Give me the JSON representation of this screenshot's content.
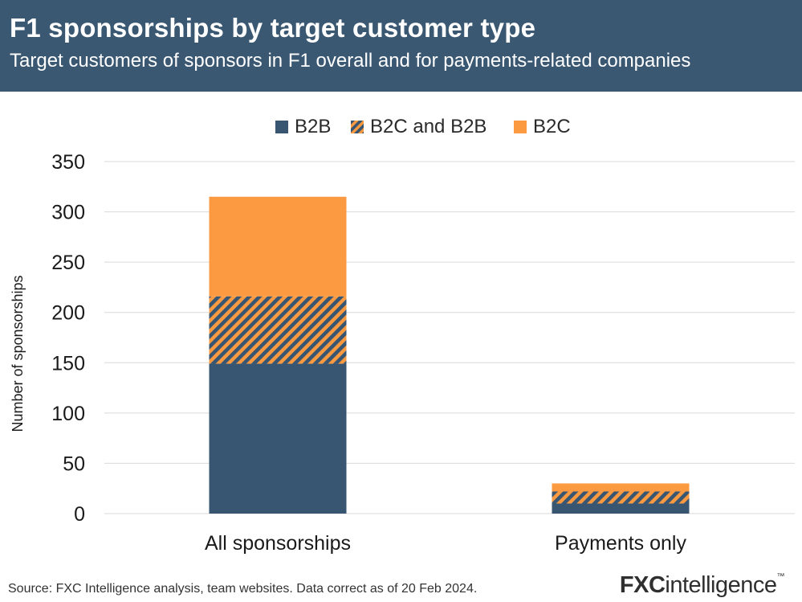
{
  "header": {
    "title": "F1 sponsorships by target customer type",
    "subtitle": "Target customers of sponsors in F1 overall and for payments-related companies"
  },
  "colors": {
    "header_bg": "#3b5873",
    "b2b": "#385672",
    "b2c": "#fb9a40",
    "grid": "#d9d9d9"
  },
  "chart_data": {
    "type": "bar",
    "stacked": true,
    "categories": [
      "All sponsorships",
      "Payments only"
    ],
    "series": [
      {
        "name": "B2B",
        "values": [
          149,
          10
        ],
        "color": "#385672",
        "pattern": "solid"
      },
      {
        "name": "B2C and B2B",
        "values": [
          67,
          12
        ],
        "color": "#385672",
        "pattern": "hatched"
      },
      {
        "name": "B2C",
        "values": [
          99,
          8
        ],
        "color": "#fb9a40",
        "pattern": "solid"
      }
    ],
    "ylabel": "Number of sponsorships",
    "yticks": [
      0,
      50,
      100,
      150,
      200,
      250,
      300,
      350
    ],
    "ylim": [
      0,
      350
    ],
    "grid": true,
    "legend_position": "top-center"
  },
  "footer": {
    "source": "Source: FXC Intelligence analysis, team websites. Data correct as of 20 Feb 2024.",
    "brand_prefix": "FXC",
    "brand_suffix": "intelligence",
    "brand_mark": "™"
  }
}
